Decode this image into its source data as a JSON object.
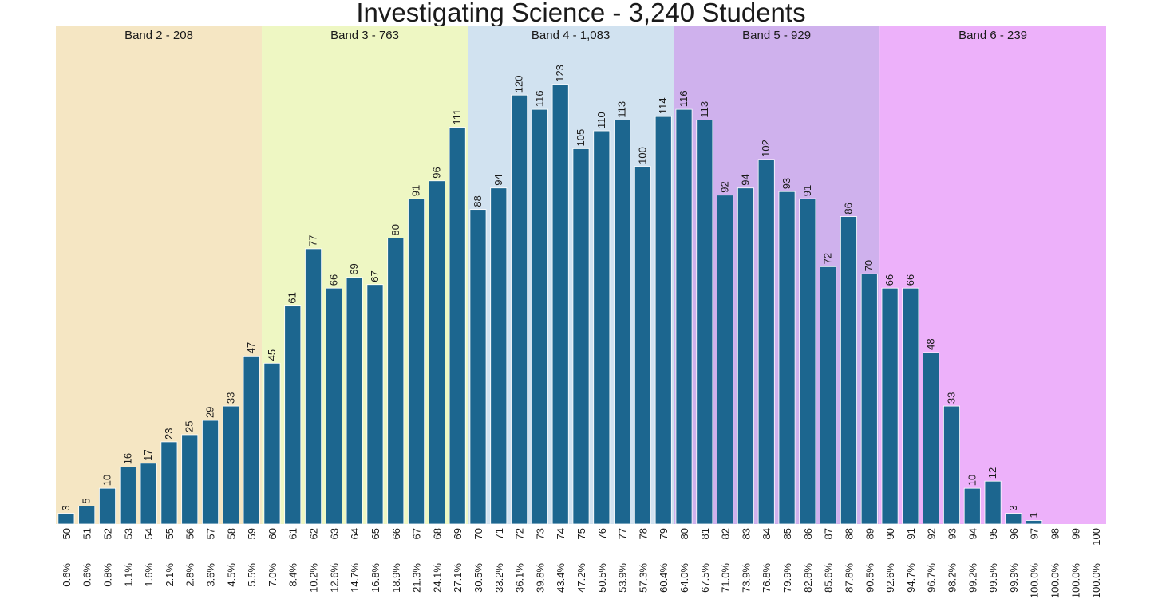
{
  "chart_data": {
    "type": "bar",
    "title": "Investigating Science - 3,240 Students",
    "xlabel": "",
    "ylabel": "",
    "ylim": [
      0,
      135
    ],
    "grid": false,
    "bar_color": "#1c668f",
    "categories": [
      "50",
      "51",
      "52",
      "53",
      "54",
      "55",
      "56",
      "57",
      "58",
      "59",
      "60",
      "61",
      "62",
      "63",
      "64",
      "65",
      "66",
      "67",
      "68",
      "69",
      "70",
      "71",
      "72",
      "73",
      "74",
      "75",
      "76",
      "77",
      "78",
      "79",
      "80",
      "81",
      "82",
      "83",
      "84",
      "85",
      "86",
      "87",
      "88",
      "89",
      "90",
      "91",
      "92",
      "93",
      "94",
      "95",
      "96",
      "97",
      "98",
      "99",
      "100"
    ],
    "values": [
      3,
      5,
      10,
      16,
      17,
      23,
      25,
      29,
      33,
      47,
      45,
      61,
      77,
      66,
      69,
      67,
      80,
      91,
      96,
      111,
      88,
      94,
      120,
      116,
      123,
      105,
      110,
      113,
      100,
      114,
      116,
      113,
      92,
      94,
      102,
      93,
      91,
      72,
      86,
      70,
      66,
      66,
      48,
      33,
      10,
      12,
      3,
      1,
      0,
      0,
      0
    ],
    "value_labels": [
      "3",
      "5",
      "10",
      "16",
      "17",
      "23",
      "25",
      "29",
      "33",
      "47",
      "45",
      "61",
      "77",
      "66",
      "69",
      "67",
      "80",
      "91",
      "96",
      "111",
      "88",
      "94",
      "120",
      "116",
      "123",
      "105",
      "110",
      "113",
      "100",
      "114",
      "116",
      "113",
      "92",
      "94",
      "102",
      "93",
      "91",
      "72",
      "86",
      "70",
      "66",
      "66",
      "48",
      "33",
      "10",
      "12",
      "3",
      "1",
      "",
      "",
      ""
    ],
    "cumulative_labels": [
      "0.6%",
      "0.6%",
      "0.8%",
      "1.1%",
      "1.6%",
      "2.1%",
      "2.8%",
      "3.6%",
      "4.5%",
      "5.5%",
      "7.0%",
      "8.4%",
      "10.2%",
      "12.6%",
      "14.7%",
      "16.8%",
      "18.9%",
      "21.3%",
      "24.1%",
      "27.1%",
      "30.5%",
      "33.2%",
      "36.1%",
      "39.8%",
      "43.4%",
      "47.2%",
      "50.5%",
      "53.9%",
      "57.3%",
      "60.4%",
      "64.0%",
      "67.5%",
      "71.0%",
      "73.9%",
      "76.8%",
      "79.9%",
      "82.8%",
      "85.6%",
      "87.8%",
      "90.5%",
      "92.6%",
      "94.7%",
      "96.7%",
      "98.2%",
      "99.2%",
      "99.5%",
      "99.9%",
      "100.0%",
      "100.0%",
      "100.0%",
      "100.0%"
    ],
    "bands": [
      {
        "label": "Band 2 - 208",
        "start": "50",
        "end": "59",
        "color": "#f5e6c3"
      },
      {
        "label": "Band 3 - 763",
        "start": "60",
        "end": "69",
        "color": "#eef7c3"
      },
      {
        "label": "Band 4 - 1,083",
        "start": "70",
        "end": "79",
        "color": "#d1e2f0"
      },
      {
        "label": "Band 5 - 929",
        "start": "80",
        "end": "89",
        "color": "#cfb1ed"
      },
      {
        "label": "Band 6 - 239",
        "start": "90",
        "end": "100",
        "color": "#edb1fa"
      }
    ]
  }
}
